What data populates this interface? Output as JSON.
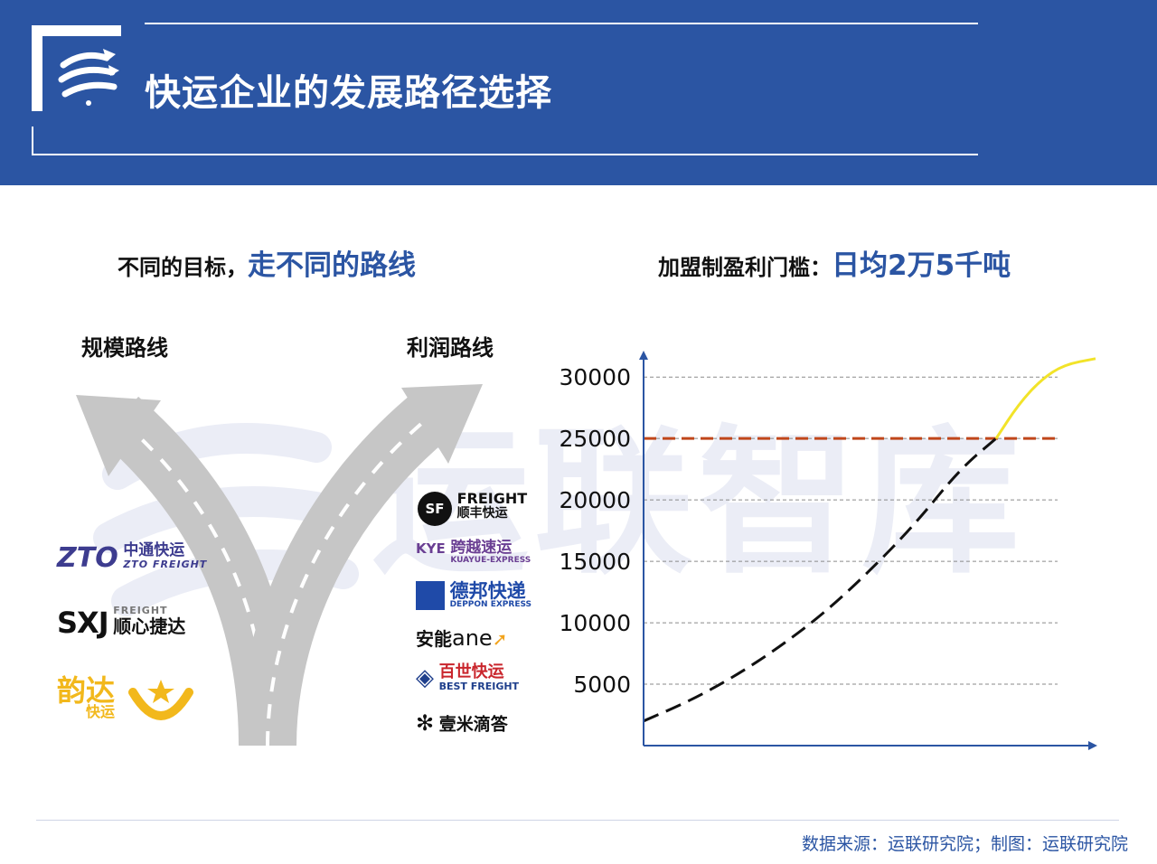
{
  "header": {
    "title": "快运企业的发展路径选择"
  },
  "watermark": {
    "text": "运联智库"
  },
  "left_section": {
    "heading_prefix": "不同的目标，",
    "heading_highlight": "走不同的路线",
    "scale_route_label": "规模路线",
    "profit_route_label": "利润路线",
    "scale_logos": [
      {
        "mark": "ZTO",
        "cn": "中通快运",
        "en": "ZTO FREIGHT"
      },
      {
        "mark": "SXJ",
        "cn": "顺心捷达",
        "en": "FREIGHT"
      },
      {
        "cn": "韵达",
        "sub": "快运"
      }
    ],
    "profit_logos": [
      {
        "mark": "SF",
        "cn": "顺丰快运",
        "en": "FREIGHT"
      },
      {
        "mark": "KYE",
        "cn": "跨越速运",
        "en": "KUAYUE-EXPRESS"
      },
      {
        "cn": "德邦快递",
        "en": "DEPPON EXPRESS"
      },
      {
        "cn": "安能",
        "en": "ane"
      },
      {
        "cn": "百世快运",
        "en": "BEST FREIGHT"
      },
      {
        "cn": "壹米滴答"
      }
    ]
  },
  "right_section": {
    "heading_prefix": "加盟制盈利门槛：",
    "heading_highlight": "日均2万5千吨"
  },
  "chart_data": {
    "type": "line",
    "title": "加盟制盈利门槛：日均2万5千吨",
    "xlabel": "",
    "ylabel": "",
    "ylim": [
      0,
      32000
    ],
    "y_ticks": [
      5000,
      10000,
      15000,
      20000,
      25000,
      30000
    ],
    "grid": true,
    "threshold": {
      "value": 25000,
      "color": "#c0461a",
      "style": "dashed"
    },
    "series": [
      {
        "style": "dashed",
        "color": "#111111",
        "x": [
          0,
          10,
          20,
          30,
          40,
          50,
          60,
          70,
          78
        ],
        "values": [
          2000,
          3600,
          5600,
          8000,
          10800,
          14200,
          18000,
          22500,
          25000
        ]
      },
      {
        "style": "solid",
        "color": "#f2e329",
        "x": [
          78,
          83,
          88,
          93,
          100
        ],
        "values": [
          25000,
          27800,
          29800,
          31000,
          31500
        ]
      }
    ]
  },
  "footer": {
    "source": "数据来源：运联研究院；制图：运联研究院"
  },
  "colors": {
    "brand_blue": "#2b55a3",
    "threshold_red": "#c0461a",
    "curve_yellow": "#f2e329",
    "watermark": "#ebedf6"
  }
}
